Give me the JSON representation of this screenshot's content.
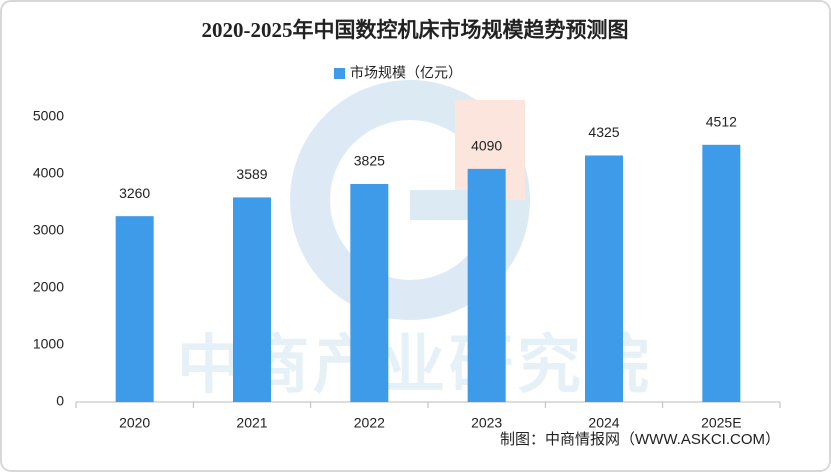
{
  "chart_data": {
    "type": "bar",
    "title": "2020-2025年中国数控机床市场规模趋势预测图",
    "categories": [
      "2020",
      "2021",
      "2022",
      "2023",
      "2024",
      "2025E"
    ],
    "series": [
      {
        "name": "市场规模（亿元）",
        "color": "#3d9be9",
        "values": [
          3260,
          3589,
          3825,
          4090,
          4325,
          4512
        ]
      }
    ],
    "ylim": [
      0,
      5000
    ],
    "yticks": [
      0,
      1000,
      2000,
      3000,
      4000,
      5000
    ],
    "grid": false,
    "source": "制图：中商情报网（WWW.ASKCI.COM）",
    "watermark": "中商产业研究院"
  }
}
